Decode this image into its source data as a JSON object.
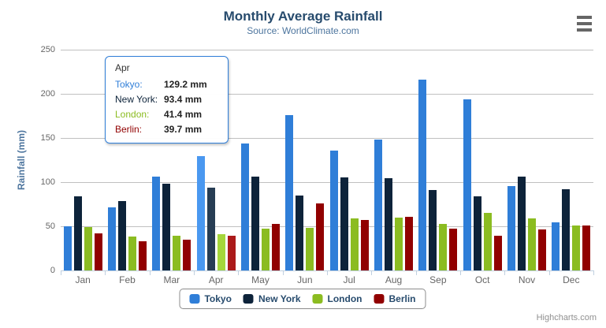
{
  "header": {
    "title": "Monthly Average Rainfall",
    "subtitle": "Source: WorldClimate.com"
  },
  "chart_data": {
    "type": "bar",
    "orientation": "vertical-columns",
    "title": "Monthly Average Rainfall",
    "subtitle": "Source: WorldClimate.com",
    "xlabel": "",
    "ylabel": "Rainfall (mm)",
    "ylim": [
      0,
      250
    ],
    "yticks": [
      0,
      50,
      100,
      150,
      200,
      250
    ],
    "grid": true,
    "legend_position": "bottom",
    "categories": [
      "Jan",
      "Feb",
      "Mar",
      "Apr",
      "May",
      "Jun",
      "Jul",
      "Aug",
      "Sep",
      "Oct",
      "Nov",
      "Dec"
    ],
    "series": [
      {
        "name": "Tokyo",
        "color": "#2f7ed8",
        "hover_color": "#4a98f0",
        "values": [
          49.9,
          71.5,
          106.4,
          129.2,
          144.0,
          176.0,
          135.6,
          148.5,
          216.4,
          194.1,
          95.6,
          54.4
        ]
      },
      {
        "name": "New York",
        "color": "#0d233a",
        "hover_color": "#273d54",
        "values": [
          83.6,
          78.8,
          98.5,
          93.4,
          106.0,
          84.5,
          105.0,
          104.3,
          91.2,
          83.5,
          106.6,
          92.3
        ]
      },
      {
        "name": "London",
        "color": "#8bbc21",
        "hover_color": "#a5d63b",
        "values": [
          48.9,
          38.8,
          39.3,
          41.4,
          47.0,
          48.3,
          59.0,
          59.6,
          52.4,
          65.2,
          59.3,
          51.2
        ]
      },
      {
        "name": "Berlin",
        "color": "#910000",
        "hover_color": "#ab1a1a",
        "values": [
          42.4,
          33.2,
          34.5,
          39.7,
          52.6,
          75.5,
          57.4,
          60.4,
          47.6,
          39.1,
          46.8,
          51.1
        ]
      }
    ],
    "hovered_category": "Apr",
    "hovered_category_index": 3
  },
  "tooltip": {
    "header": "Apr",
    "rows": [
      {
        "label": "Tokyo:",
        "value": "129.2 mm",
        "color": "#2f7ed8"
      },
      {
        "label": "New York:",
        "value": "93.4 mm",
        "color": "#0d233a"
      },
      {
        "label": "London:",
        "value": "41.4 mm",
        "color": "#8bbc21"
      },
      {
        "label": "Berlin:",
        "value": "39.7 mm",
        "color": "#910000"
      }
    ],
    "border_color": "#2f7ed8"
  },
  "colors": {
    "title": "#274b6d",
    "subtitle": "#4d759e",
    "axis_labels": "#666666",
    "gridline": "#c0c0c0",
    "axis_line": "#c0d0e0",
    "legend_text": "#274b6d",
    "credits": "#909090"
  },
  "credits": "Highcharts.com"
}
